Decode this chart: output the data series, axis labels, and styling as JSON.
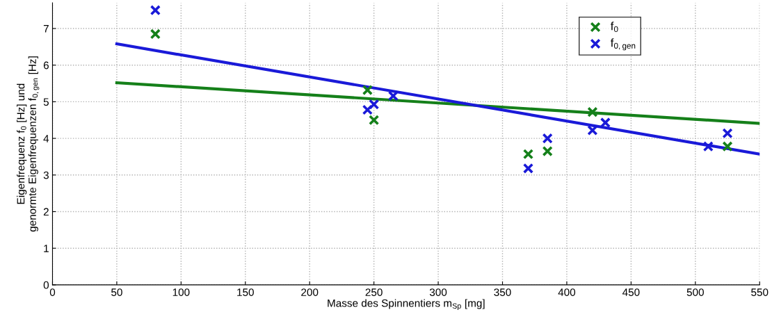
{
  "chart_data": {
    "type": "scatter",
    "xlabel": "Masse des Spinnentiers m$_{Sp}$ [mg]",
    "ylabel": "Eigenfrequenz f$_{0}$ [Hz] und\ngenormte Eigenfrequenzen f$_{0,gen}$ [Hz]",
    "series": [
      {
        "name": "f$_{0}$",
        "color": "#15801a",
        "marker": "cross",
        "x": [
          80,
          245,
          250,
          370,
          385,
          420,
          525
        ],
        "values": [
          6.85,
          5.32,
          4.5,
          3.57,
          3.65,
          4.72,
          3.78
        ]
      },
      {
        "name": "f$_{0,gen}$",
        "color": "#1a1ad8",
        "marker": "cross",
        "x": [
          80,
          245,
          250,
          265,
          370,
          385,
          420,
          430,
          510,
          525
        ],
        "values": [
          7.5,
          4.78,
          4.93,
          5.16,
          3.18,
          4.0,
          4.22,
          4.43,
          3.78,
          4.14
        ]
      },
      {
        "type": "line",
        "color": "#15801a",
        "marker": "none",
        "x": [
          50,
          550
        ],
        "values": [
          5.52,
          4.41
        ]
      },
      {
        "type": "line",
        "color": "#1a1ad8",
        "marker": "none",
        "x": [
          50,
          550
        ],
        "values": [
          6.58,
          3.57
        ]
      }
    ],
    "line_style": "solid",
    "xlim": [
      0,
      550
    ],
    "xticks": [
      0,
      50,
      100,
      150,
      200,
      250,
      300,
      350,
      400,
      450,
      500,
      550
    ],
    "ylim": [
      0,
      7.7
    ],
    "yticks": [
      0,
      1,
      2,
      3,
      4,
      5,
      6,
      7
    ],
    "grid": true,
    "legend": "top right"
  }
}
